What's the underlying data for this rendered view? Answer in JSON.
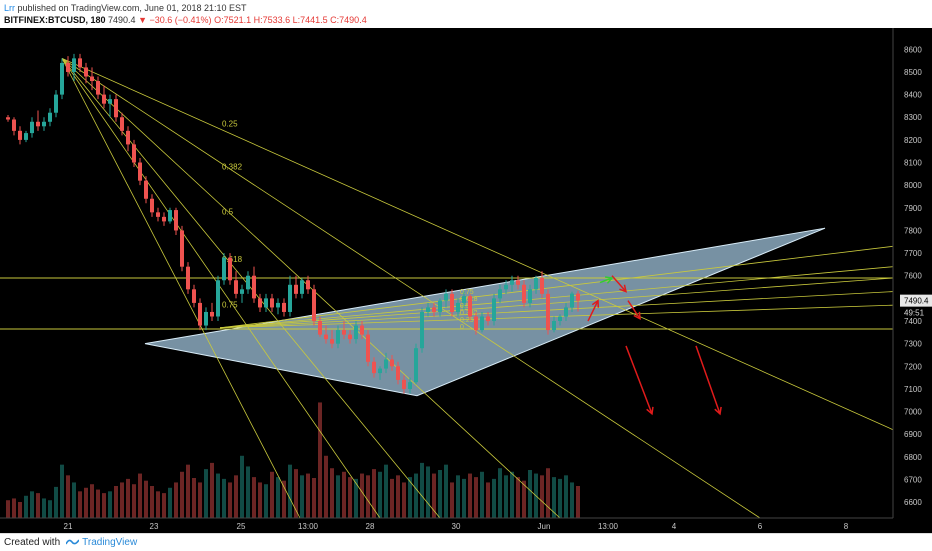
{
  "header": {
    "author": "Lrr",
    "published": "published on TradingView.com, June 01, 2018 21:10 EST",
    "symbol": "BITFINEX:BTCUSD, 180",
    "last": "7490.4",
    "change": "−30.6 (−0.41%)",
    "ohlc": "O:7521.1 H:7533.6 L:7441.5 C:7490.4"
  },
  "footer": {
    "created": "Created with",
    "brand": "TradingView"
  },
  "colors": {
    "up": "#26a69a",
    "down": "#ef5350",
    "fib": "#c9c93c",
    "wedge": "#a9cfe8",
    "arrow_down": "#e01b1b",
    "arrow_up": "#33cc33",
    "axis_text": "#c8c8c8",
    "bg": "#000000"
  },
  "chart_data": {
    "type": "candlestick",
    "x_ticks": [
      "21",
      "23",
      "25",
      "13:00",
      "28",
      "30",
      "Jun",
      "13:00",
      "4",
      "6",
      "8"
    ],
    "y_ticks": [
      6600,
      6700,
      6800,
      6900,
      7000,
      7100,
      7200,
      7300,
      7400,
      7500,
      7600,
      7700,
      7800,
      7900,
      8000,
      8100,
      8200,
      8300,
      8400,
      8500,
      8600
    ],
    "ylim": [
      6530,
      8650
    ],
    "price_label": "7490.4",
    "countdown_label": "49:51",
    "fib_levels": [
      "0.25",
      "0.382",
      "0.5",
      "0.618",
      "0.75"
    ],
    "fib_levels_small": [
      "0.75",
      "0.618",
      "0.5",
      "0.382",
      "0.25",
      "0"
    ],
    "horizontal_levels": [
      7590,
      7365
    ],
    "candles": [
      [
        8300,
        8310,
        8280,
        8290
      ],
      [
        8290,
        8300,
        8220,
        8240
      ],
      [
        8240,
        8260,
        8180,
        8200
      ],
      [
        8200,
        8240,
        8190,
        8230
      ],
      [
        8230,
        8300,
        8210,
        8280
      ],
      [
        8280,
        8330,
        8240,
        8260
      ],
      [
        8260,
        8300,
        8240,
        8280
      ],
      [
        8280,
        8340,
        8260,
        8320
      ],
      [
        8320,
        8420,
        8300,
        8400
      ],
      [
        8400,
        8560,
        8380,
        8540
      ],
      [
        8540,
        8570,
        8480,
        8500
      ],
      [
        8500,
        8580,
        8460,
        8560
      ],
      [
        8560,
        8580,
        8500,
        8520
      ],
      [
        8520,
        8540,
        8450,
        8480
      ],
      [
        8480,
        8520,
        8420,
        8460
      ],
      [
        8460,
        8480,
        8380,
        8400
      ],
      [
        8400,
        8440,
        8340,
        8360
      ],
      [
        8360,
        8400,
        8300,
        8380
      ],
      [
        8380,
        8400,
        8280,
        8300
      ],
      [
        8300,
        8320,
        8220,
        8240
      ],
      [
        8240,
        8260,
        8150,
        8180
      ],
      [
        8180,
        8200,
        8080,
        8100
      ],
      [
        8100,
        8120,
        8000,
        8020
      ],
      [
        8020,
        8040,
        7920,
        7940
      ],
      [
        7940,
        7960,
        7860,
        7880
      ],
      [
        7880,
        7900,
        7840,
        7860
      ],
      [
        7860,
        7880,
        7820,
        7840
      ],
      [
        7840,
        7900,
        7830,
        7890
      ],
      [
        7890,
        7900,
        7780,
        7800
      ],
      [
        7800,
        7820,
        7620,
        7640
      ],
      [
        7640,
        7660,
        7520,
        7540
      ],
      [
        7540,
        7560,
        7460,
        7480
      ],
      [
        7480,
        7500,
        7360,
        7380
      ],
      [
        7380,
        7460,
        7360,
        7440
      ],
      [
        7440,
        7480,
        7400,
        7420
      ],
      [
        7420,
        7600,
        7400,
        7580
      ],
      [
        7580,
        7700,
        7560,
        7680
      ],
      [
        7680,
        7700,
        7560,
        7580
      ],
      [
        7580,
        7620,
        7500,
        7520
      ],
      [
        7520,
        7560,
        7480,
        7540
      ],
      [
        7540,
        7620,
        7520,
        7600
      ],
      [
        7600,
        7640,
        7480,
        7500
      ],
      [
        7500,
        7520,
        7440,
        7460
      ],
      [
        7460,
        7520,
        7440,
        7500
      ],
      [
        7500,
        7520,
        7440,
        7460
      ],
      [
        7460,
        7500,
        7430,
        7480
      ],
      [
        7480,
        7500,
        7420,
        7440
      ],
      [
        7440,
        7600,
        7420,
        7560
      ],
      [
        7560,
        7600,
        7500,
        7520
      ],
      [
        7520,
        7590,
        7500,
        7580
      ],
      [
        7580,
        7600,
        7520,
        7540
      ],
      [
        7540,
        7560,
        7380,
        7400
      ],
      [
        7400,
        7420,
        7330,
        7340
      ],
      [
        7340,
        7380,
        7300,
        7320
      ],
      [
        7320,
        7360,
        7280,
        7300
      ],
      [
        7300,
        7380,
        7280,
        7360
      ],
      [
        7360,
        7400,
        7320,
        7340
      ],
      [
        7340,
        7360,
        7300,
        7320
      ],
      [
        7320,
        7400,
        7300,
        7380
      ],
      [
        7380,
        7400,
        7320,
        7340
      ],
      [
        7340,
        7360,
        7200,
        7220
      ],
      [
        7220,
        7240,
        7150,
        7170
      ],
      [
        7170,
        7200,
        7140,
        7190
      ],
      [
        7190,
        7260,
        7170,
        7230
      ],
      [
        7230,
        7250,
        7180,
        7200
      ],
      [
        7200,
        7220,
        7120,
        7140
      ],
      [
        7140,
        7160,
        7080,
        7100
      ],
      [
        7100,
        7150,
        7080,
        7130
      ],
      [
        7130,
        7300,
        7120,
        7280
      ],
      [
        7280,
        7460,
        7260,
        7440
      ],
      [
        7440,
        7480,
        7420,
        7460
      ],
      [
        7460,
        7480,
        7420,
        7440
      ],
      [
        7440,
        7500,
        7420,
        7490
      ],
      [
        7490,
        7540,
        7460,
        7520
      ],
      [
        7520,
        7540,
        7420,
        7440
      ],
      [
        7440,
        7500,
        7420,
        7480
      ],
      [
        7480,
        7530,
        7450,
        7510
      ],
      [
        7510,
        7520,
        7400,
        7420
      ],
      [
        7420,
        7440,
        7340,
        7360
      ],
      [
        7360,
        7440,
        7350,
        7420
      ],
      [
        7420,
        7440,
        7380,
        7400
      ],
      [
        7400,
        7520,
        7380,
        7500
      ],
      [
        7500,
        7560,
        7480,
        7540
      ],
      [
        7540,
        7580,
        7520,
        7560
      ],
      [
        7560,
        7600,
        7530,
        7580
      ],
      [
        7580,
        7600,
        7540,
        7560
      ],
      [
        7560,
        7580,
        7460,
        7480
      ],
      [
        7480,
        7560,
        7460,
        7540
      ],
      [
        7540,
        7600,
        7520,
        7590
      ],
      [
        7590,
        7620,
        7500,
        7520
      ],
      [
        7520,
        7540,
        7340,
        7360
      ],
      [
        7360,
        7420,
        7350,
        7400
      ],
      [
        7400,
        7430,
        7380,
        7420
      ],
      [
        7420,
        7480,
        7400,
        7460
      ],
      [
        7460,
        7530,
        7440,
        7521
      ],
      [
        7521.1,
        7533.6,
        7441.5,
        7490.4
      ]
    ],
    "volumes": [
      20,
      22,
      18,
      25,
      30,
      28,
      22,
      20,
      35,
      60,
      48,
      40,
      30,
      34,
      38,
      32,
      28,
      30,
      36,
      40,
      44,
      38,
      50,
      42,
      36,
      30,
      28,
      34,
      40,
      52,
      60,
      45,
      40,
      55,
      62,
      50,
      44,
      40,
      48,
      70,
      58,
      46,
      40,
      38,
      52,
      46,
      42,
      60,
      55,
      48,
      50,
      45,
      130,
      70,
      56,
      48,
      52,
      46,
      44,
      50,
      48,
      55,
      52,
      60,
      44,
      48,
      40,
      46,
      50,
      62,
      58,
      50,
      54,
      60,
      40,
      48,
      44,
      50,
      46,
      52,
      40,
      44,
      56,
      48,
      52,
      46,
      42,
      54,
      50,
      48,
      56,
      46,
      44,
      48,
      40,
      36
    ],
    "vol_max": 135
  }
}
